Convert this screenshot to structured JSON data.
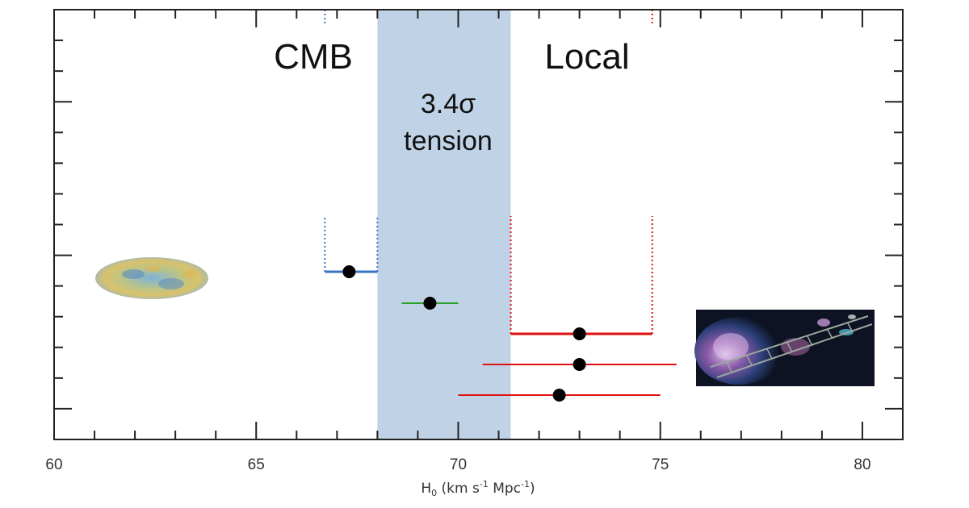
{
  "chart_data": {
    "type": "scatter",
    "title": "",
    "xlabel": "H",
    "xlabel_subscript": "0",
    "xlabel_units": " (km s",
    "xlabel_exp1": "-1",
    "xlabel_mid": " Mpc",
    "xlabel_exp2": "-1",
    "xlabel_close": ")",
    "xlim": [
      60,
      81
    ],
    "x_ticks": [
      "60",
      "65",
      "70",
      "75",
      "80"
    ],
    "tension_band": {
      "from": 68.0,
      "to": 71.3,
      "color": "#c0d3e6"
    },
    "annotations": {
      "cmb": "CMB",
      "local": "Local",
      "tension_line1": "3.4σ",
      "tension_line2": "tension"
    },
    "points": [
      {
        "group": "CMB",
        "x": 67.3,
        "xerr_low": 66.7,
        "xerr_high": 68.0,
        "color": "#3a75c4",
        "bracket": true
      },
      {
        "group": "intermediate",
        "x": 69.3,
        "xerr_low": 68.6,
        "xerr_high": 70.0,
        "color": "#2ca02c",
        "bracket": false
      },
      {
        "group": "Local",
        "x": 73.0,
        "xerr_low": 71.3,
        "xerr_high": 74.8,
        "color": "#e01010",
        "bracket": true
      },
      {
        "group": "Local",
        "x": 73.0,
        "xerr_low": 70.6,
        "xerr_high": 75.4,
        "color": "#e01010",
        "bracket": false
      },
      {
        "group": "Local",
        "x": 72.5,
        "xerr_low": 70.0,
        "xerr_high": 75.0,
        "color": "#e01010",
        "bracket": false
      }
    ],
    "images": [
      "cmb-sky-map",
      "galaxy-distance-ladder"
    ],
    "grid": false
  }
}
